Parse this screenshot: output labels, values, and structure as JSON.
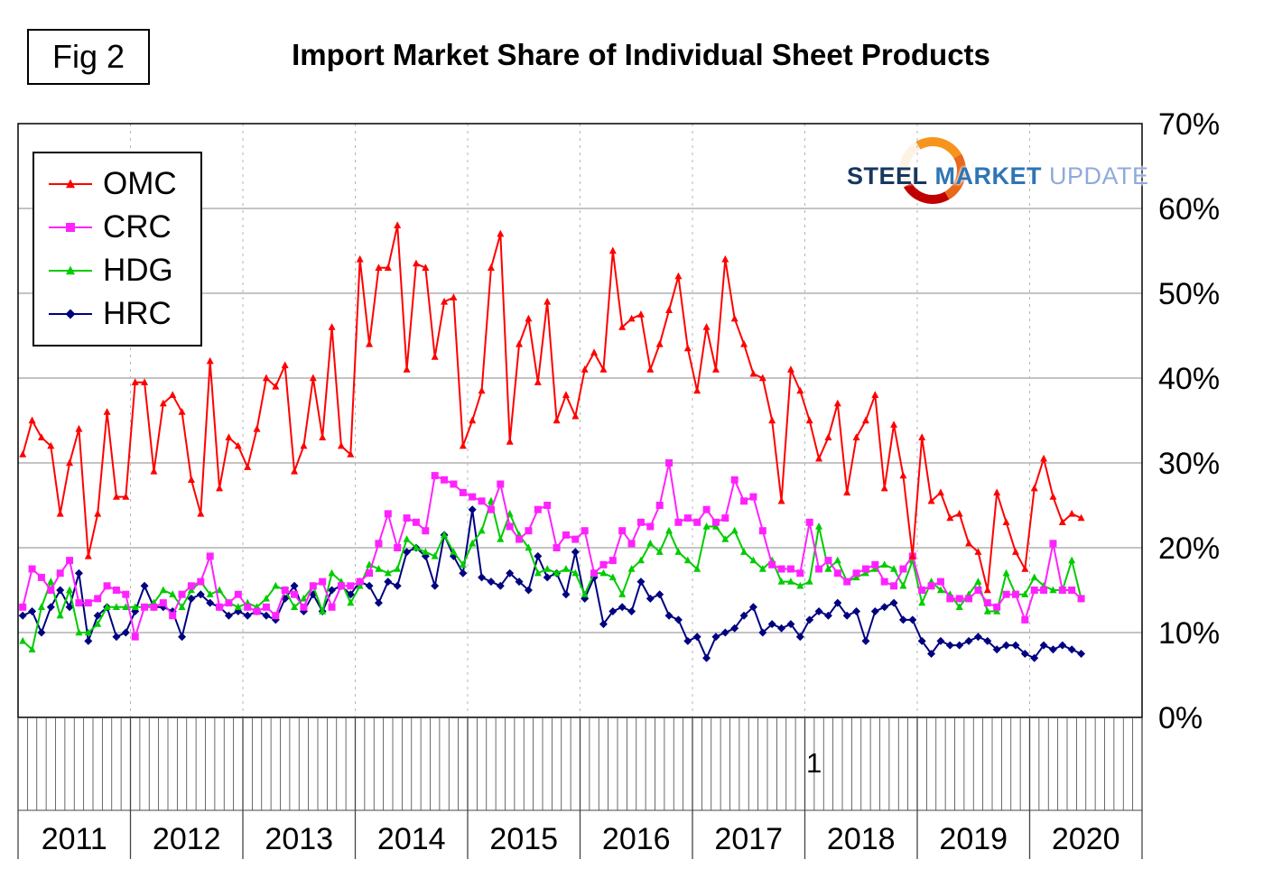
{
  "header": {
    "fig_label": "Fig 2",
    "title": "Import Market Share of Individual Sheet Products"
  },
  "logo": {
    "steel": "STEEL",
    "market": "MARKET",
    "update": "UPDATE"
  },
  "chart_data": {
    "type": "line",
    "title": "Import Market Share of Individual Sheet Products",
    "xlabel": "",
    "ylabel": "",
    "ylim": [
      0,
      70
    ],
    "grid": true,
    "legend_position": "top-left",
    "x_start": "2011-01",
    "x_end": "2020-06",
    "axis_total_months": 120,
    "x_year_labels": [
      "2011",
      "2012",
      "2013",
      "2014",
      "2015",
      "2016",
      "2017",
      "2018",
      "2019",
      "2020"
    ],
    "y_tick_labels": [
      "0%",
      "10%",
      "20%",
      "30%",
      "40%",
      "50%",
      "60%",
      "70%"
    ],
    "annotations": [
      {
        "text": "1"
      }
    ],
    "series": [
      {
        "name": "OMC",
        "color": "#FF0000",
        "marker": "triangle",
        "values": [
          31,
          35,
          33,
          32,
          24,
          30,
          34,
          19,
          24,
          36,
          26,
          26,
          39.5,
          39.5,
          29,
          37,
          38,
          36,
          28,
          24,
          42,
          27,
          33,
          32,
          29.5,
          34,
          40,
          39,
          41.5,
          29,
          32,
          40,
          33,
          46,
          32,
          31,
          54,
          44,
          53,
          53,
          58,
          41,
          53.5,
          53,
          42.5,
          49,
          49.5,
          32,
          35,
          38.5,
          53,
          57,
          32.5,
          44,
          47,
          39.5,
          49,
          35,
          38,
          35.5,
          41,
          43,
          41,
          55,
          46,
          47,
          47.5,
          41,
          44,
          48,
          52,
          43.5,
          38.5,
          46,
          41,
          54,
          47,
          44,
          40.5,
          40,
          35,
          25.5,
          41,
          38.5,
          35,
          30.5,
          33,
          37,
          26.5,
          33,
          35,
          38,
          27,
          34.5,
          28.5,
          19,
          33,
          25.5,
          26.5,
          23.5,
          24,
          20.5,
          19.5,
          15,
          26.5,
          23,
          19.5,
          17.5,
          27,
          30.5,
          26,
          23,
          24,
          23.5
        ]
      },
      {
        "name": "CRC",
        "color": "#FF22FF",
        "marker": "square",
        "values": [
          13,
          17.5,
          16.5,
          15,
          17,
          18.5,
          13.5,
          13.5,
          14,
          15.5,
          15,
          14.5,
          9.5,
          13,
          13,
          13.5,
          12,
          14.5,
          15.5,
          16,
          19,
          13,
          13.5,
          14.5,
          13,
          12.5,
          13,
          12,
          15,
          14.5,
          13,
          15.5,
          16,
          13,
          15.5,
          15.5,
          16,
          17,
          20.5,
          24,
          20,
          23.5,
          23,
          22,
          28.5,
          28,
          27.5,
          26.5,
          26,
          25.5,
          24.5,
          27.5,
          22.5,
          21,
          22,
          24.5,
          25,
          20,
          21.5,
          21,
          22,
          17,
          18,
          18.5,
          22,
          20.5,
          23,
          22.5,
          25,
          30,
          23,
          23.5,
          23,
          24.5,
          23,
          23.5,
          28,
          25.5,
          26,
          22,
          18,
          17.5,
          17.5,
          17,
          23,
          17.5,
          18.5,
          17,
          16,
          17,
          17.5,
          18,
          16,
          15.5,
          17.5,
          19,
          15,
          15.5,
          16,
          14,
          14,
          14,
          15,
          13.5,
          13,
          14.5,
          14.5,
          11.5,
          15,
          15,
          20.5,
          15,
          15,
          14
        ]
      },
      {
        "name": "HDG",
        "color": "#00CC00",
        "marker": "triangle",
        "values": [
          9,
          8,
          13,
          16,
          12,
          15,
          10,
          10,
          11,
          13,
          13,
          13,
          13,
          13,
          13.5,
          15,
          14.5,
          13,
          15,
          16,
          14.5,
          15,
          13.5,
          13,
          13.5,
          13,
          14,
          15.5,
          15,
          13,
          14,
          15.5,
          12.5,
          17,
          16,
          13.5,
          15.5,
          18,
          17.5,
          17,
          17.5,
          21,
          20,
          19.5,
          19,
          21.5,
          19.5,
          18,
          20.5,
          22,
          25.5,
          21,
          24,
          21.5,
          20,
          17,
          17.5,
          17,
          17.5,
          17,
          14.5,
          17,
          17,
          16.5,
          14.5,
          17.5,
          18.5,
          20.5,
          19.5,
          22,
          19.5,
          18.5,
          17.5,
          22.5,
          22.5,
          21,
          22,
          19.5,
          18.5,
          17.5,
          18.5,
          16,
          16,
          15.5,
          16,
          22.5,
          17.5,
          18.5,
          16,
          16.5,
          17,
          17.5,
          18,
          17.5,
          15.5,
          18.5,
          13.5,
          16,
          15,
          14.5,
          13,
          14.5,
          16,
          12.5,
          12.5,
          17,
          14.5,
          14.5,
          16.5,
          15.5,
          15,
          15,
          18.5,
          14
        ]
      },
      {
        "name": "HRC",
        "color": "#000080",
        "marker": "diamond",
        "values": [
          12,
          12.5,
          10,
          13,
          15,
          13,
          17,
          9,
          12,
          13,
          9.5,
          10,
          12.5,
          15.5,
          13,
          13,
          12.5,
          9.5,
          14,
          14.5,
          13.5,
          13,
          12,
          12.5,
          12,
          12.5,
          12,
          11.5,
          14,
          15.5,
          12.5,
          14.5,
          12.5,
          15,
          15.5,
          14.5,
          16,
          15.5,
          13.5,
          16,
          15.5,
          19.5,
          20,
          19,
          15.5,
          21.5,
          19,
          17,
          24.5,
          16.5,
          16,
          15.5,
          17,
          16,
          15,
          19,
          16.5,
          17,
          14.5,
          19.5,
          14,
          16.5,
          11,
          12.5,
          13,
          12.5,
          16,
          14,
          14.5,
          12,
          11.5,
          9,
          9.5,
          7,
          9.5,
          10,
          10.5,
          12,
          13,
          10,
          11,
          10.5,
          11,
          9.5,
          11.5,
          12.5,
          12,
          13.5,
          12,
          12.5,
          9,
          12.5,
          13,
          13.5,
          11.5,
          11.5,
          9,
          7.5,
          9,
          8.5,
          8.5,
          9,
          9.5,
          9,
          8,
          8.5,
          8.5,
          7.5,
          7,
          8.5,
          8,
          8.5,
          8,
          7.5
        ]
      }
    ]
  }
}
